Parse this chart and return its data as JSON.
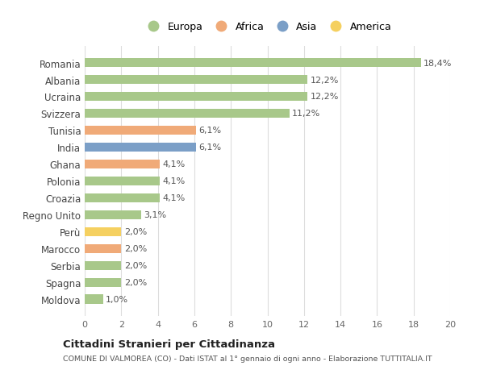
{
  "countries": [
    "Romania",
    "Albania",
    "Ucraina",
    "Svizzera",
    "Tunisia",
    "India",
    "Ghana",
    "Polonia",
    "Croazia",
    "Regno Unito",
    "Perù",
    "Marocco",
    "Serbia",
    "Spagna",
    "Moldova"
  ],
  "values": [
    18.4,
    12.2,
    12.2,
    11.2,
    6.1,
    6.1,
    4.1,
    4.1,
    4.1,
    3.1,
    2.0,
    2.0,
    2.0,
    2.0,
    1.0
  ],
  "labels": [
    "18,4%",
    "12,2%",
    "12,2%",
    "11,2%",
    "6,1%",
    "6,1%",
    "4,1%",
    "4,1%",
    "4,1%",
    "3,1%",
    "2,0%",
    "2,0%",
    "2,0%",
    "2,0%",
    "1,0%"
  ],
  "continents": [
    "Europa",
    "Europa",
    "Europa",
    "Europa",
    "Africa",
    "Asia",
    "Africa",
    "Europa",
    "Europa",
    "Europa",
    "America",
    "Africa",
    "Europa",
    "Europa",
    "Europa"
  ],
  "colors": {
    "Europa": "#a8c88a",
    "Africa": "#f0aa78",
    "Asia": "#7b9fc7",
    "America": "#f5d060"
  },
  "legend_order": [
    "Europa",
    "Africa",
    "Asia",
    "America"
  ],
  "title": "Cittadini Stranieri per Cittadinanza",
  "subtitle": "COMUNE DI VALMOREA (CO) - Dati ISTAT al 1° gennaio di ogni anno - Elaborazione TUTTITALIA.IT",
  "xlim": [
    0,
    20
  ],
  "xticks": [
    0,
    2,
    4,
    6,
    8,
    10,
    12,
    14,
    16,
    18,
    20
  ],
  "bg_color": "#ffffff",
  "grid_color": "#dddddd"
}
